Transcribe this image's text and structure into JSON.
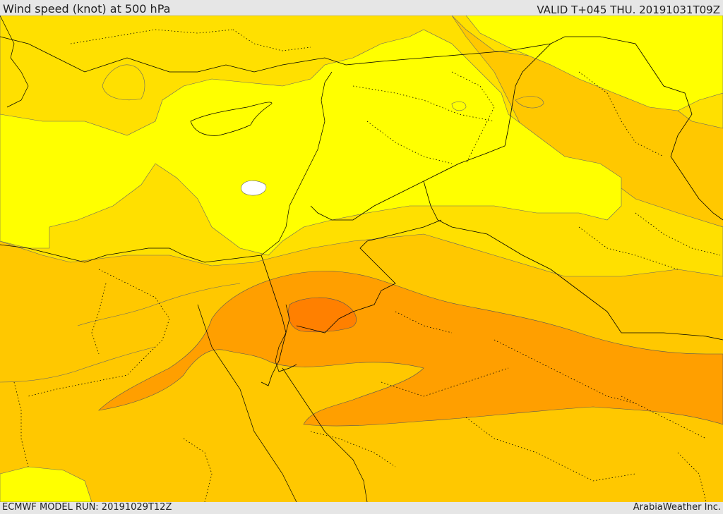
{
  "header": {
    "title": "Wind speed (knot) at 500 hPa",
    "valid": "VALID T+045 THU. 20191031T09Z"
  },
  "footer": {
    "model_run": "ECMWF MODEL RUN: 20191029T12Z",
    "credit": "ArabiaWeather Inc."
  },
  "map": {
    "fill_colors": {
      "level_1": "#ffffff",
      "level_2": "#ffff00",
      "level_3": "#ffe000",
      "level_4": "#ffc800",
      "level_5": "#ffbe00",
      "level_6": "#ff9f00",
      "level_7": "#ff8000"
    },
    "boundary_color": "#000000",
    "contour_color": "#555555"
  }
}
